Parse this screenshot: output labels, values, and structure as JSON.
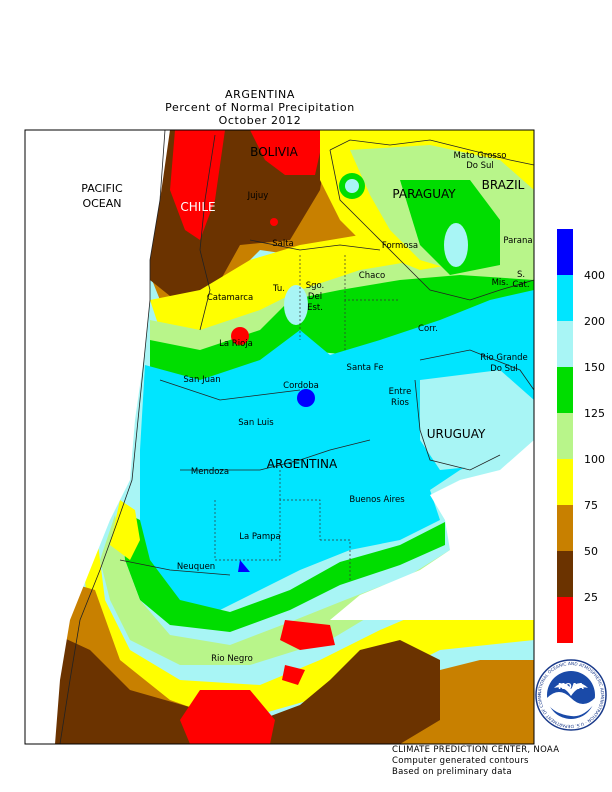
{
  "header": {
    "country": "ARGENTINA",
    "subtitle": "Percent of Normal Precipitation",
    "period": "October 2012"
  },
  "map_labels": {
    "pacific": "PACIFIC",
    "ocean": "OCEAN",
    "chile": "CHILE",
    "bolivia": "BOLIVIA",
    "paraguay": "PARAGUAY",
    "brazil": "BRAZIL",
    "uruguay": "URUGUAY",
    "argentina": "ARGENTINA",
    "mato_grosso_1": "Mato Grosso",
    "mato_grosso_2": "Do Sul",
    "jujuy": "Jujuy",
    "salta": "Salta",
    "formosa": "Formosa",
    "parana": "Parana",
    "tucuman": "Tu.",
    "sgo1": "Sgo.",
    "sgo2": "Del",
    "sgo3": "Est.",
    "chaco": "Chaco",
    "catamarca": "Catamarca",
    "misiones": "Mis.",
    "sc1": "S.",
    "sc2": "Cat.",
    "corrientes": "Corr.",
    "la_rioja": "La Rioja",
    "santa_fe": "Santa Fe",
    "rio_grande_1": "Rio Grande",
    "rio_grande_2": "Do Sul",
    "san_juan": "San Juan",
    "cordoba": "Cordoba",
    "entre_rios_1": "Entre",
    "entre_rios_2": "Rios",
    "san_luis": "San Luis",
    "mendoza": "Mendoza",
    "buenos_aires": "Buenos Aires",
    "la_pampa": "La Pampa",
    "neuquen": "Neuquen",
    "rio_negro": "Rio Negro"
  },
  "legend": {
    "levels": [
      "400",
      "200",
      "150",
      "125",
      "100",
      "75",
      "50",
      "25"
    ],
    "colors": [
      "#0000ff",
      "#00e5ff",
      "#a8f5f5",
      "#00dd00",
      "#b8f58a",
      "#ffff00",
      "#c88000",
      "#6b3300",
      "#ff0000"
    ]
  },
  "footer": {
    "line1": "CLIMATE PREDICTION CENTER, NOAA",
    "line2": "Computer generated contours",
    "line3": "Based on preliminary data"
  },
  "logo": {
    "text": "NOAA",
    "ring_text": "NATIONAL OCEANIC AND ATMOSPHERIC ADMINISTRATION · U.S. DEPARTMENT OF COMMERCE"
  }
}
